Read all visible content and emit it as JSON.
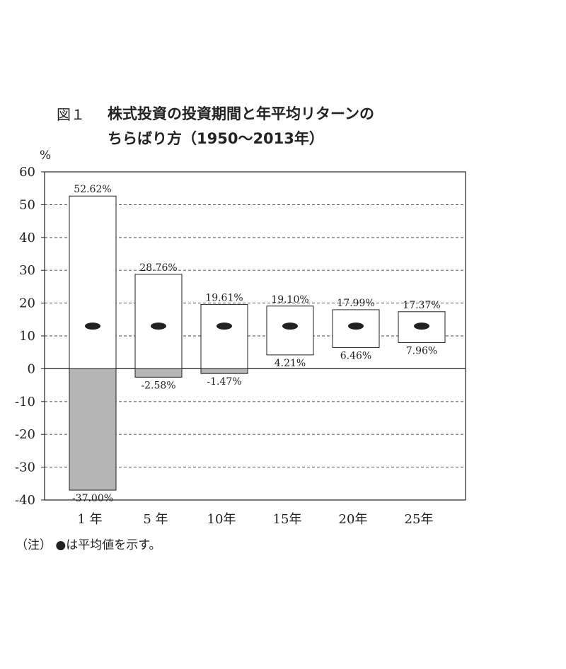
{
  "figure_label": "図１",
  "title_line1": "株式投資の投資期間と年平均リターンの",
  "title_line2": "ちらばり方（1950〜2013年）",
  "unit_label": "%",
  "note": {
    "prefix": "（注）",
    "marker": "●",
    "text": "は平均値を示す。"
  },
  "chart_data": {
    "type": "floating-bar",
    "categories": [
      "1 年",
      "5 年",
      "10年",
      "15年",
      "20年",
      "25年"
    ],
    "max": [
      52.62,
      28.76,
      19.61,
      19.1,
      17.99,
      17.37
    ],
    "min": [
      -37.0,
      -2.58,
      -1.47,
      4.21,
      6.46,
      7.96
    ],
    "max_labels": [
      "52.62%",
      "28.76%",
      "19.61%",
      "19.10%",
      "17.99%",
      "17.37%"
    ],
    "min_labels": [
      "-37.00%",
      "-2.58%",
      "-1.47%",
      "4.21%",
      "6.46%",
      "7.96%"
    ],
    "mean": [
      13,
      13,
      13,
      13,
      13,
      13
    ],
    "ylim": [
      -40,
      60
    ],
    "yticks": [
      60,
      50,
      40,
      30,
      20,
      10,
      0,
      -10,
      -20,
      -30,
      -40
    ],
    "grid": "dashed horizontal",
    "colors": {
      "positive": "#ffffff",
      "negative": "#b5b5b5",
      "mean_marker": "#222222"
    }
  }
}
